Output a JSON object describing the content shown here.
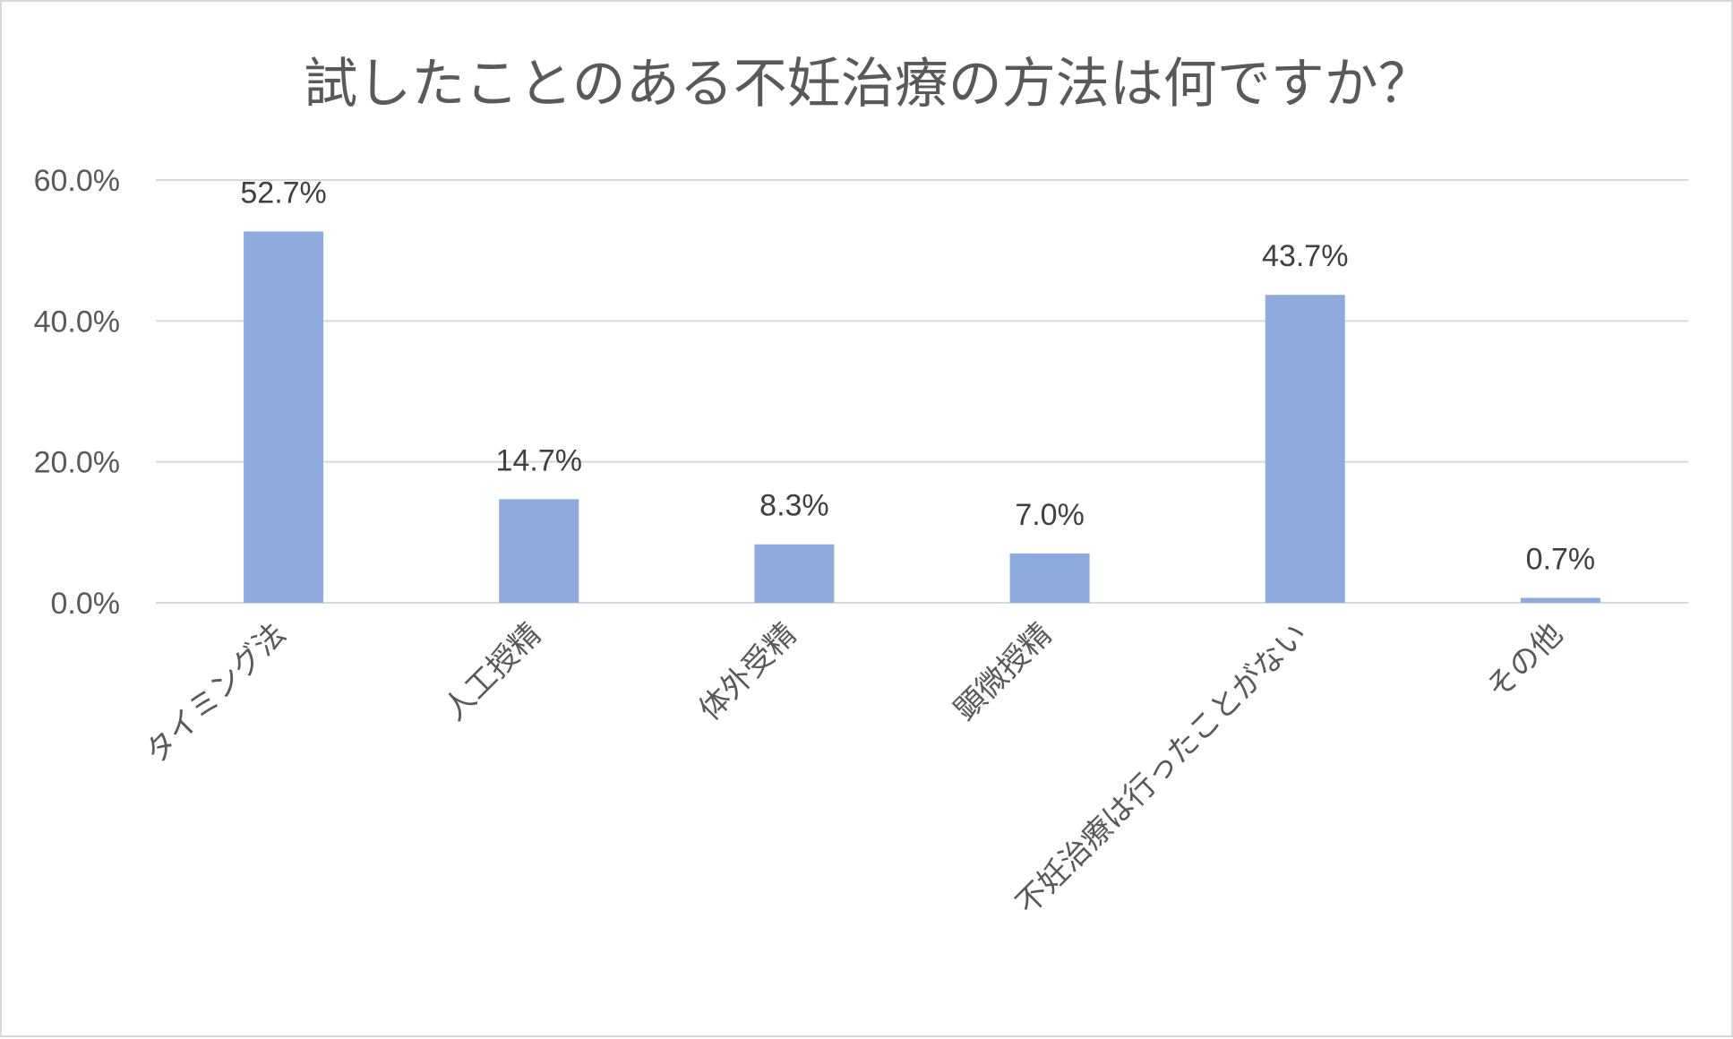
{
  "chart_data": {
    "type": "bar",
    "title": "試したことのある不妊治療の方法は何ですか？",
    "xlabel": "",
    "ylabel": "",
    "categories": [
      "タイミング法",
      "人工授精",
      "体外受精",
      "顕微授精",
      "不妊治療は行ったことがない",
      "その他"
    ],
    "values": [
      52.7,
      14.7,
      8.3,
      7.0,
      43.7,
      0.7
    ],
    "data_labels": [
      "52.7%",
      "14.7%",
      "8.3%",
      "7.0%",
      "43.7%",
      "0.7%"
    ],
    "ylim": [
      0,
      60
    ],
    "y_ticks": [
      0,
      20,
      40,
      60
    ],
    "y_tick_labels": [
      "0.0%",
      "20.0%",
      "40.0%",
      "60.0%"
    ],
    "grid": true,
    "legend": "none",
    "bar_color": "#8faadc"
  }
}
